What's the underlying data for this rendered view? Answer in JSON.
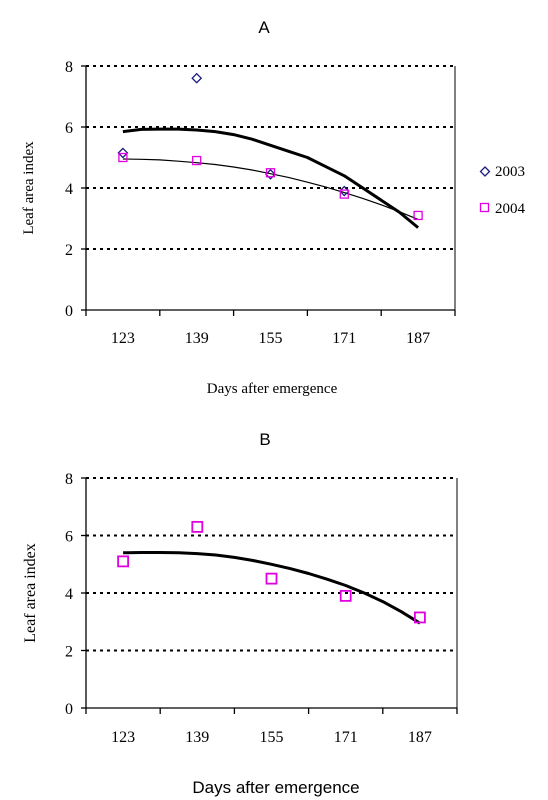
{
  "chart_data": [
    {
      "type": "scatter",
      "title": "A",
      "xlabel": "Days after emergence",
      "ylabel": "Leaf area index",
      "xticks": [
        "123",
        "139",
        "155",
        "171",
        "187"
      ],
      "yticks": [
        "0",
        "2",
        "4",
        "6",
        "8"
      ],
      "xlim": [
        115,
        195
      ],
      "ylim": [
        0,
        8
      ],
      "grid": "horizontal dotted",
      "legend": "right",
      "series": [
        {
          "name": "2003",
          "marker": "diamond",
          "color": "#1a1a80",
          "x": [
            123,
            139,
            155,
            171
          ],
          "y": [
            5.15,
            7.6,
            4.45,
            3.9
          ]
        },
        {
          "name": "2004",
          "marker": "square",
          "color": "#e000e0",
          "x": [
            123,
            139,
            155,
            171,
            187
          ],
          "y": [
            5.0,
            4.9,
            4.5,
            3.8,
            3.1
          ]
        }
      ],
      "fit_lines": [
        {
          "style": "thick",
          "color": "#000000",
          "x": [
            123,
            127,
            131,
            135,
            139,
            143,
            147,
            151,
            155,
            159,
            163,
            167,
            171,
            175,
            179,
            183,
            187
          ],
          "y": [
            5.85,
            5.92,
            5.93,
            5.93,
            5.9,
            5.85,
            5.75,
            5.6,
            5.4,
            5.2,
            5.0,
            4.7,
            4.4,
            4.0,
            3.6,
            3.2,
            2.7
          ]
        },
        {
          "style": "thin",
          "color": "#000000",
          "x": [
            123,
            127,
            131,
            135,
            139,
            143,
            147,
            151,
            155,
            159,
            163,
            167,
            171,
            175,
            179,
            183,
            187
          ],
          "y": [
            4.95,
            4.94,
            4.92,
            4.88,
            4.83,
            4.77,
            4.69,
            4.59,
            4.47,
            4.34,
            4.19,
            4.03,
            3.85,
            3.66,
            3.45,
            3.22,
            2.97
          ]
        }
      ]
    },
    {
      "type": "scatter",
      "title": "B",
      "xlabel": "Days after emergence",
      "ylabel": "Leaf area index",
      "xticks": [
        "123",
        "139",
        "155",
        "171",
        "187"
      ],
      "yticks": [
        "0",
        "2",
        "4",
        "6",
        "8"
      ],
      "xlim": [
        115,
        195
      ],
      "ylim": [
        0,
        8
      ],
      "grid": "horizontal dotted",
      "legend": "none",
      "series": [
        {
          "marker": "square",
          "color": "#e000e0",
          "x": [
            123,
            139,
            155,
            171,
            187
          ],
          "y": [
            5.1,
            6.3,
            4.5,
            3.9,
            3.15
          ]
        }
      ],
      "fit_lines": [
        {
          "style": "thick",
          "color": "#000000",
          "x": [
            123,
            127,
            131,
            135,
            139,
            143,
            147,
            151,
            155,
            159,
            163,
            167,
            171,
            175,
            179,
            183,
            187
          ],
          "y": [
            5.4,
            5.41,
            5.41,
            5.4,
            5.37,
            5.32,
            5.24,
            5.13,
            5.0,
            4.85,
            4.68,
            4.48,
            4.26,
            4.0,
            3.7,
            3.35,
            2.95
          ]
        }
      ]
    }
  ]
}
